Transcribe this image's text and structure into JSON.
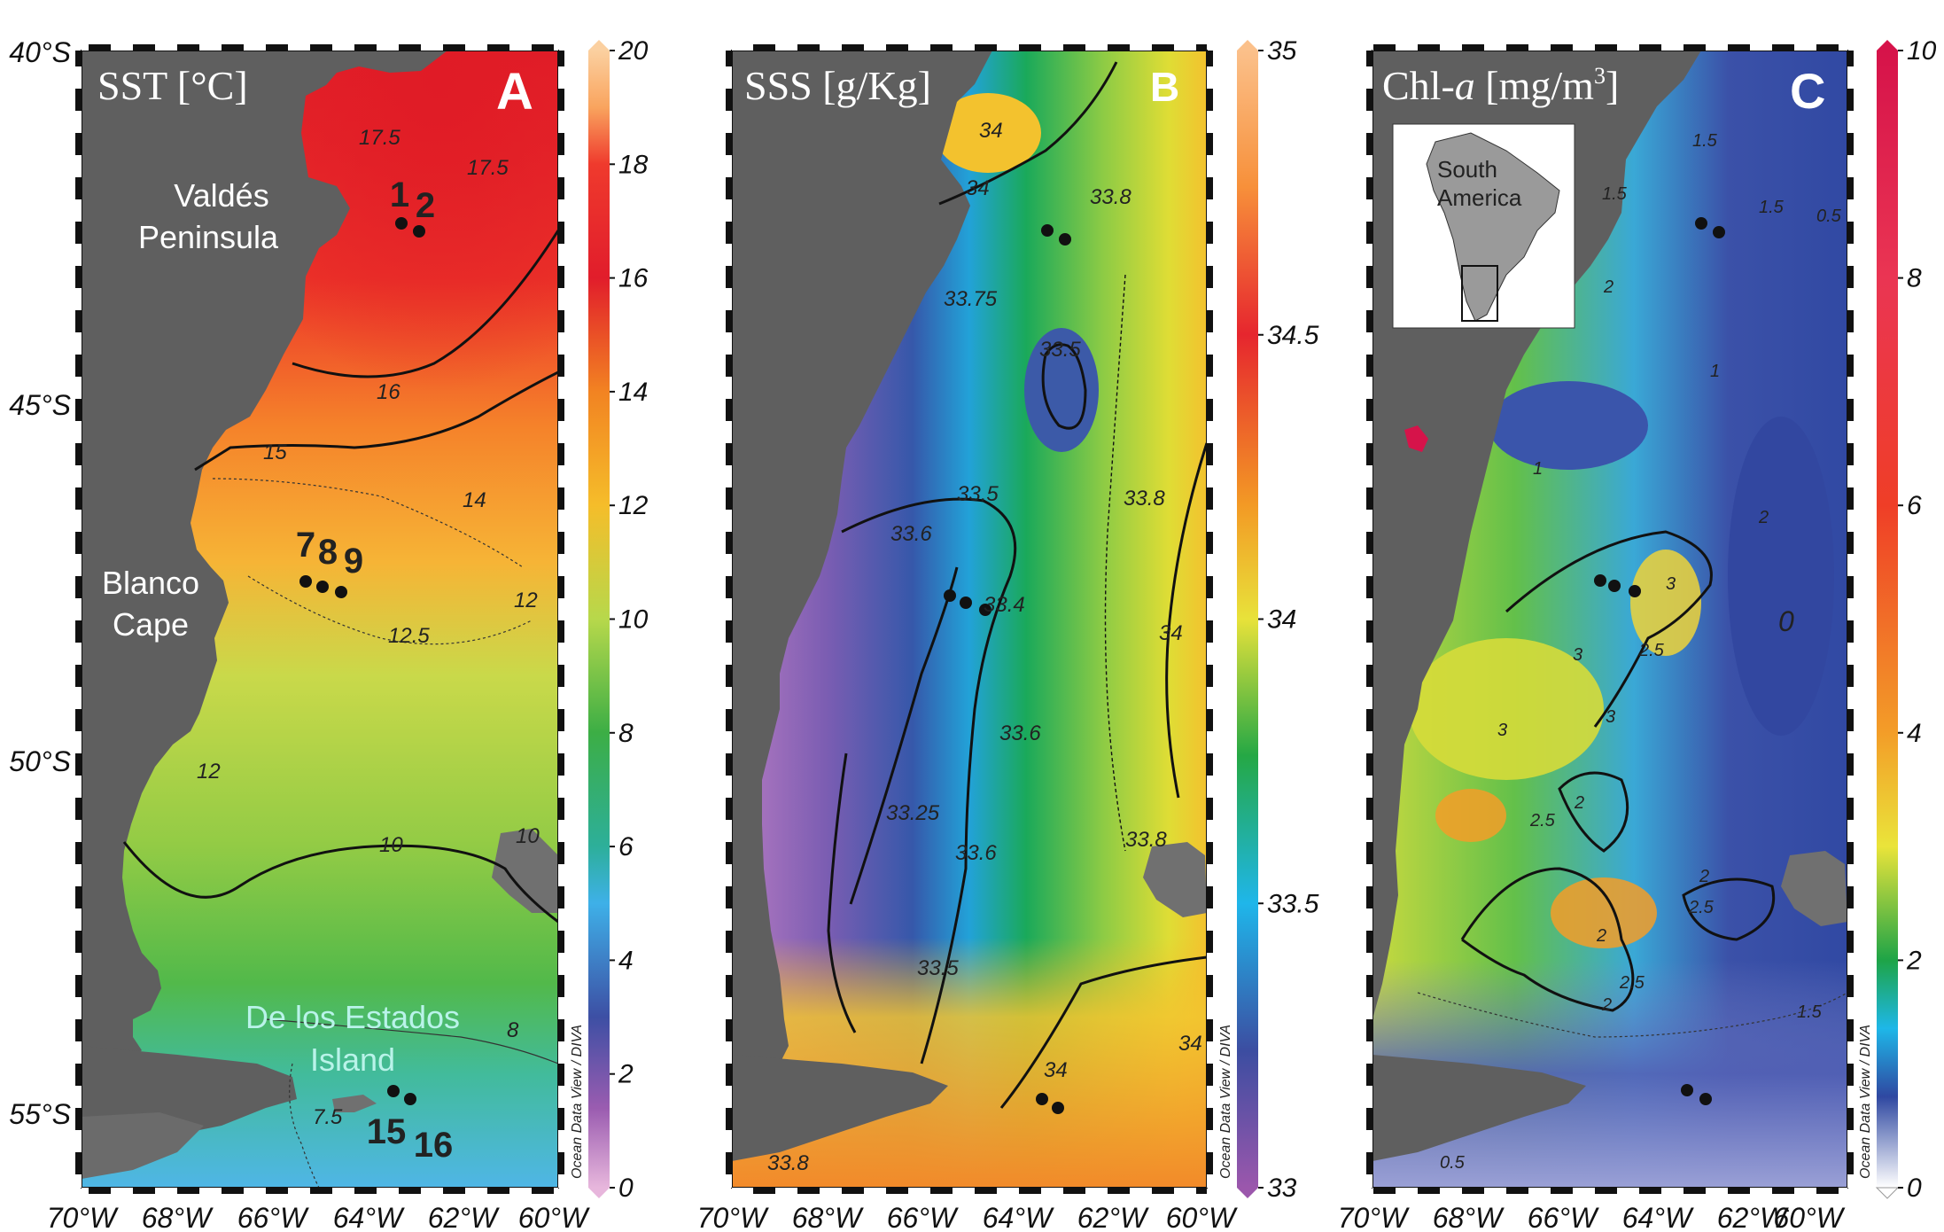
{
  "figure": {
    "lat_labels": [
      "40°S",
      "45°S",
      "50°S",
      "55°S"
    ],
    "lon_labels": [
      "70°W",
      "68°W",
      "66°W",
      "64°W",
      "62°W",
      "60°W"
    ],
    "credit": "Ocean Data View / DIVA"
  },
  "panels": [
    {
      "letter": "A",
      "title": "SST [°C]",
      "colorbar_ticks": [
        "20",
        "18",
        "16",
        "14",
        "12",
        "10",
        "8",
        "6",
        "4",
        "2",
        "0"
      ],
      "colorbar_range": [
        0,
        20
      ],
      "place_labels": {
        "valdes": [
          "Valdés",
          "Peninsula"
        ],
        "blanco": [
          "Blanco",
          "Cape"
        ],
        "estados": [
          "De los Estados",
          "Island"
        ]
      },
      "station_numbers": [
        "1",
        "2",
        "7",
        "8",
        "9",
        "15",
        "16"
      ],
      "contour_labels": [
        "17.5",
        "17.5",
        "16",
        "15",
        "14",
        "12.5",
        "12",
        "12",
        "10",
        "10",
        "8",
        "7.5"
      ]
    },
    {
      "letter": "B",
      "title": "SSS [g/Kg]",
      "colorbar_ticks": [
        "35",
        "34.5",
        "34",
        "33.5",
        "33"
      ],
      "colorbar_range": [
        33,
        35
      ],
      "contour_labels": [
        "34",
        "34",
        "33.8",
        "33.75",
        "33.5",
        "33.5",
        "33.6",
        "33.4",
        "33.8",
        "34",
        "33.6",
        "33.25",
        "33.6",
        "33.5",
        "33.8",
        "34",
        "34",
        "33.8"
      ]
    },
    {
      "letter": "C",
      "title_main": "Chl-",
      "title_italic": "a",
      "title_unit": " [mg/m",
      "title_sup": "3",
      "title_end": "]",
      "colorbar_ticks": [
        "10",
        "8",
        "6",
        "4",
        "2",
        "0"
      ],
      "colorbar_range": [
        0,
        10
      ],
      "inset_label": [
        "South",
        "America"
      ],
      "contour_labels": [
        "1.5",
        "1.5",
        "1.5",
        "0.5",
        "2",
        "1",
        "1",
        "2",
        "3",
        "2.5",
        "3",
        "3",
        "3",
        "2",
        "2",
        "2.5",
        "2.5",
        "2",
        "2.5",
        "2",
        "1.5",
        "0.5",
        "0"
      ]
    }
  ],
  "colors": {
    "land": "#5f5f5f",
    "frame": "#111111",
    "station": "#111111",
    "place_label": "#ffffff",
    "estados_label": "#b9f3e9"
  }
}
